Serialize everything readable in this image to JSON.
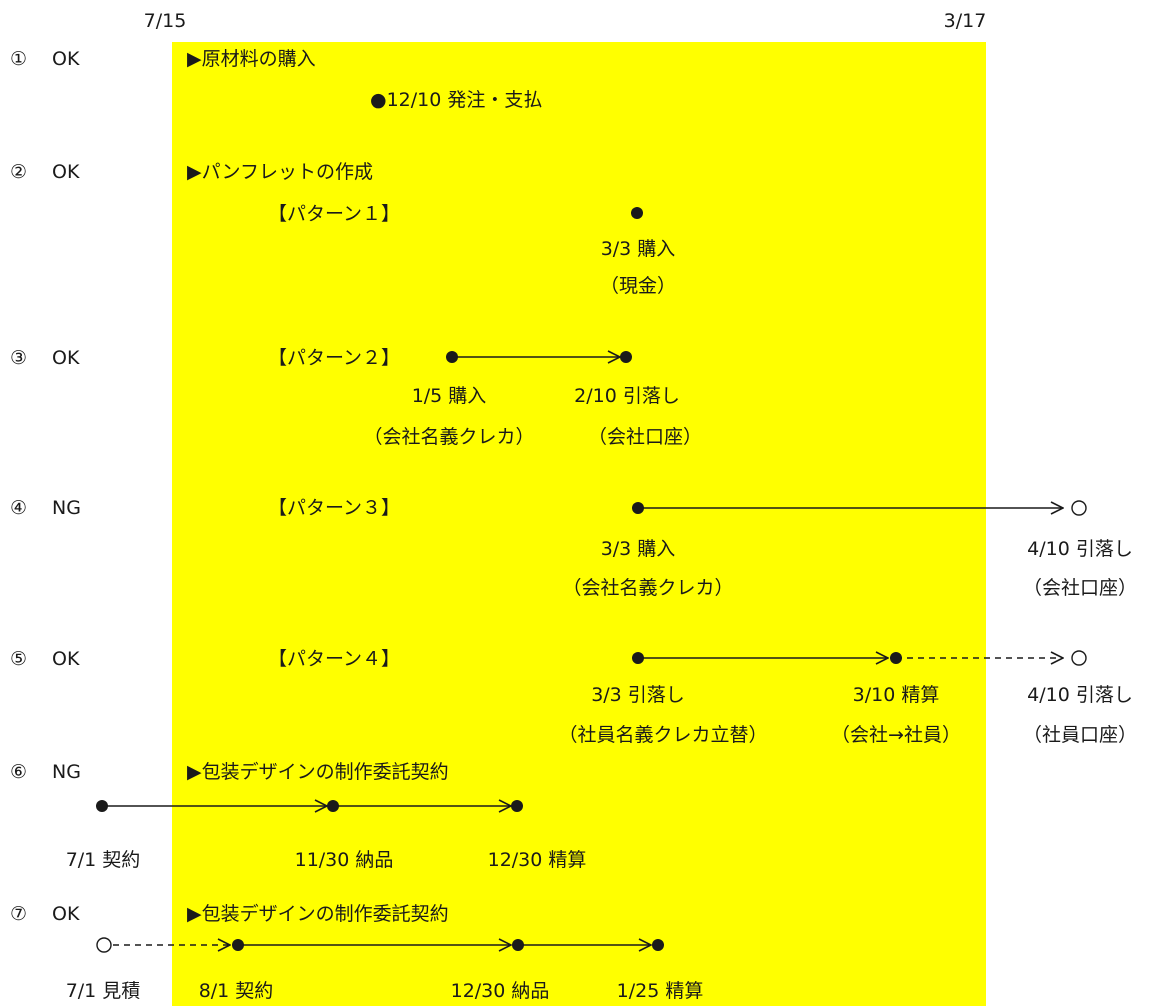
{
  "colors": {
    "period_band": "#ffff00",
    "text": "#1a1a1a",
    "line": "#1a1a1a"
  },
  "period": {
    "start": "7/15",
    "end": "3/17"
  },
  "rows": [
    {
      "marker": "①",
      "result": "OK"
    },
    {
      "marker": "②",
      "result": "OK"
    },
    {
      "marker": "③",
      "result": "OK"
    },
    {
      "marker": "④",
      "result": "NG"
    },
    {
      "marker": "⑤",
      "result": "OK"
    },
    {
      "marker": "⑥",
      "result": "NG"
    },
    {
      "marker": "⑦",
      "result": "OK"
    }
  ],
  "sections": {
    "materials": "▶原材料の購入",
    "pamphlet": "▶パンフレットの作成",
    "design_a": "▶包装デザインの制作委託契約",
    "design_b": "▶包装デザインの制作委託契約"
  },
  "patterns": {
    "p1": "【パターン１】",
    "p2": "【パターン２】",
    "p3": "【パターン３】",
    "p4": "【パターン４】"
  },
  "events": {
    "order_pay": "●12/10 発注・支払",
    "p1_purchase": "3/3 購入",
    "p1_cash": "（現金）",
    "p2_purchase": "1/5 購入",
    "p2_card": "（会社名義クレカ）",
    "p2_debit": "2/10 引落し",
    "p2_account": "（会社口座）",
    "p3_purchase": "3/3 購入",
    "p3_card": "（会社名義クレカ）",
    "p3_debit": "4/10 引落し",
    "p3_account": "（会社口座）",
    "p4_debit": "3/3 引落し",
    "p4_card": "（社員名義クレカ立替）",
    "p4_settle": "3/10 精算",
    "p4_flow": "（会社→社員）",
    "p4_debit2": "4/10 引落し",
    "p4_account": "（社員口座）",
    "r6_contract": "7/1 契約",
    "r6_delivery": "11/30 納品",
    "r6_settle": "12/30 精算",
    "r7_estimate": "7/1 見積",
    "r7_contract": "8/1 契約",
    "r7_delivery": "12/30 納品",
    "r7_settle": "1/25 精算"
  }
}
